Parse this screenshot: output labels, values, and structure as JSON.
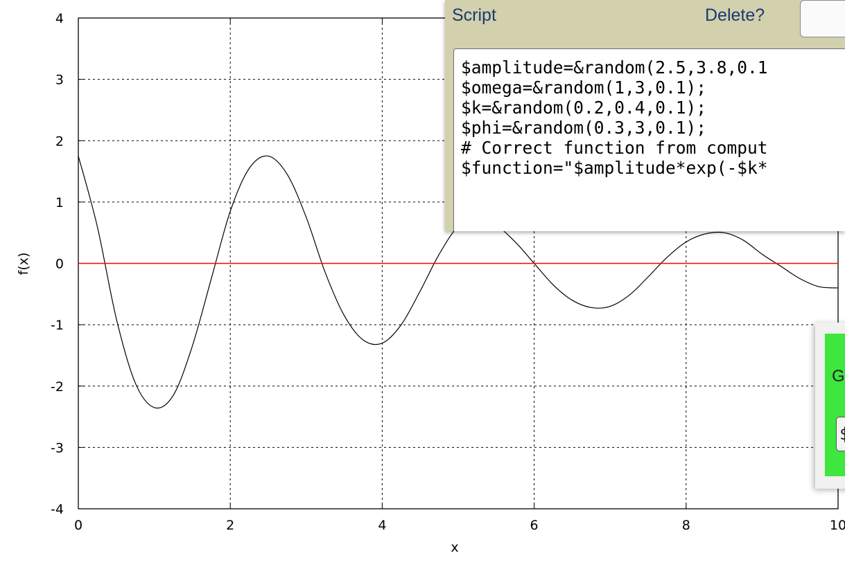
{
  "chart_data": {
    "type": "line",
    "xlabel": "x",
    "ylabel": "f(x)",
    "xlim": [
      0,
      10
    ],
    "ylim": [
      -4,
      4
    ],
    "x_ticks": [
      "0",
      "2",
      "4",
      "6",
      "8",
      "10"
    ],
    "y_ticks": [
      "4",
      "3",
      "2",
      "1",
      "0",
      "-1",
      "-2",
      "-3",
      "-4"
    ],
    "grid": true,
    "series": [
      {
        "color": "#000000",
        "x": [
          0,
          0.25,
          0.5,
          0.75,
          1.0,
          1.25,
          1.5,
          1.75,
          2.0,
          2.25,
          2.5,
          2.75,
          3.0,
          3.25,
          3.5,
          3.75,
          4.0,
          4.25,
          4.5,
          4.75,
          5.0,
          5.25,
          5.5,
          5.75,
          6.0,
          6.25,
          6.5,
          6.75,
          7.0,
          7.25,
          7.5,
          7.75,
          8.0,
          8.25,
          8.5,
          8.75,
          9.0,
          9.25,
          9.5,
          9.75,
          10.0
        ],
        "y": [
          1.75,
          0.6,
          -0.9,
          -1.95,
          -2.35,
          -2.15,
          -1.35,
          -0.25,
          0.85,
          1.55,
          1.75,
          1.45,
          0.75,
          -0.15,
          -0.85,
          -1.25,
          -1.3,
          -1.0,
          -0.45,
          0.15,
          0.6,
          0.72,
          0.62,
          0.35,
          0.0,
          -0.35,
          -0.6,
          -0.72,
          -0.7,
          -0.52,
          -0.22,
          0.1,
          0.35,
          0.48,
          0.5,
          0.38,
          0.15,
          -0.05,
          -0.25,
          -0.38,
          -0.4
        ]
      },
      {
        "color": "#ff0000",
        "x": [
          0,
          10
        ],
        "y": [
          0,
          0
        ]
      }
    ]
  },
  "script_panel": {
    "title": "Script",
    "delete_label": "Delete?",
    "lines": [
      "$amplitude=&random(2.5,3.8,0.1",
      "$omega=&random(1,3,0.1);",
      "$k=&random(0.2,0.4,0.1);",
      "$phi=&random(0.3,3,0.1);",
      "# Correct function from comput",
      "$function=\"$amplitude*exp(-$k*"
    ]
  },
  "green_panel": {
    "label": "G",
    "select_value": "$"
  }
}
